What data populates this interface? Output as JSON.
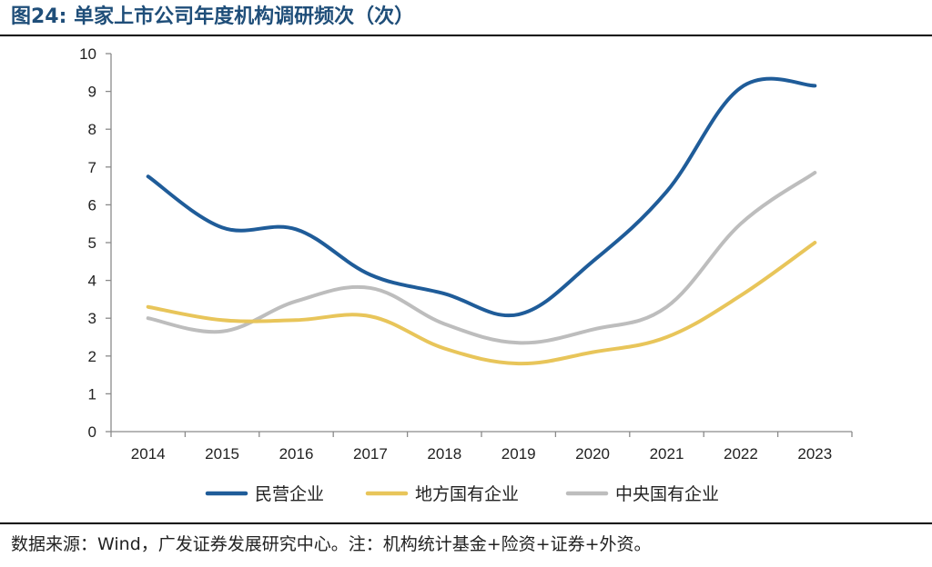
{
  "figure": {
    "title": "图24:  单家上市公司年度机构调研频次（次）",
    "source_note": "数据来源：Wind，广发证券发展研究中心。注：机构统计基金+险资+证券+外资。"
  },
  "chart_data": {
    "type": "line",
    "title": "单家上市公司年度机构调研频次（次）",
    "xlabel": "",
    "ylabel": "",
    "categories": [
      "2014",
      "2015",
      "2016",
      "2017",
      "2018",
      "2019",
      "2020",
      "2021",
      "2022",
      "2023"
    ],
    "ylim": [
      0,
      10
    ],
    "yticks": [
      0,
      1,
      2,
      3,
      4,
      5,
      6,
      7,
      8,
      9,
      10
    ],
    "legend_position": "bottom",
    "series": [
      {
        "name": "民营企业",
        "color": "#1f5c99",
        "values": [
          6.75,
          5.4,
          5.35,
          4.15,
          3.65,
          3.1,
          4.5,
          6.35,
          9.1,
          9.15
        ]
      },
      {
        "name": "地方国有企业",
        "color": "#e8c55a",
        "values": [
          3.3,
          2.95,
          2.95,
          3.05,
          2.2,
          1.8,
          2.1,
          2.5,
          3.6,
          5.0
        ]
      },
      {
        "name": "中央国有企业",
        "color": "#bdbdbd",
        "values": [
          3.0,
          2.65,
          3.45,
          3.8,
          2.85,
          2.35,
          2.7,
          3.3,
          5.5,
          6.85
        ]
      }
    ]
  }
}
